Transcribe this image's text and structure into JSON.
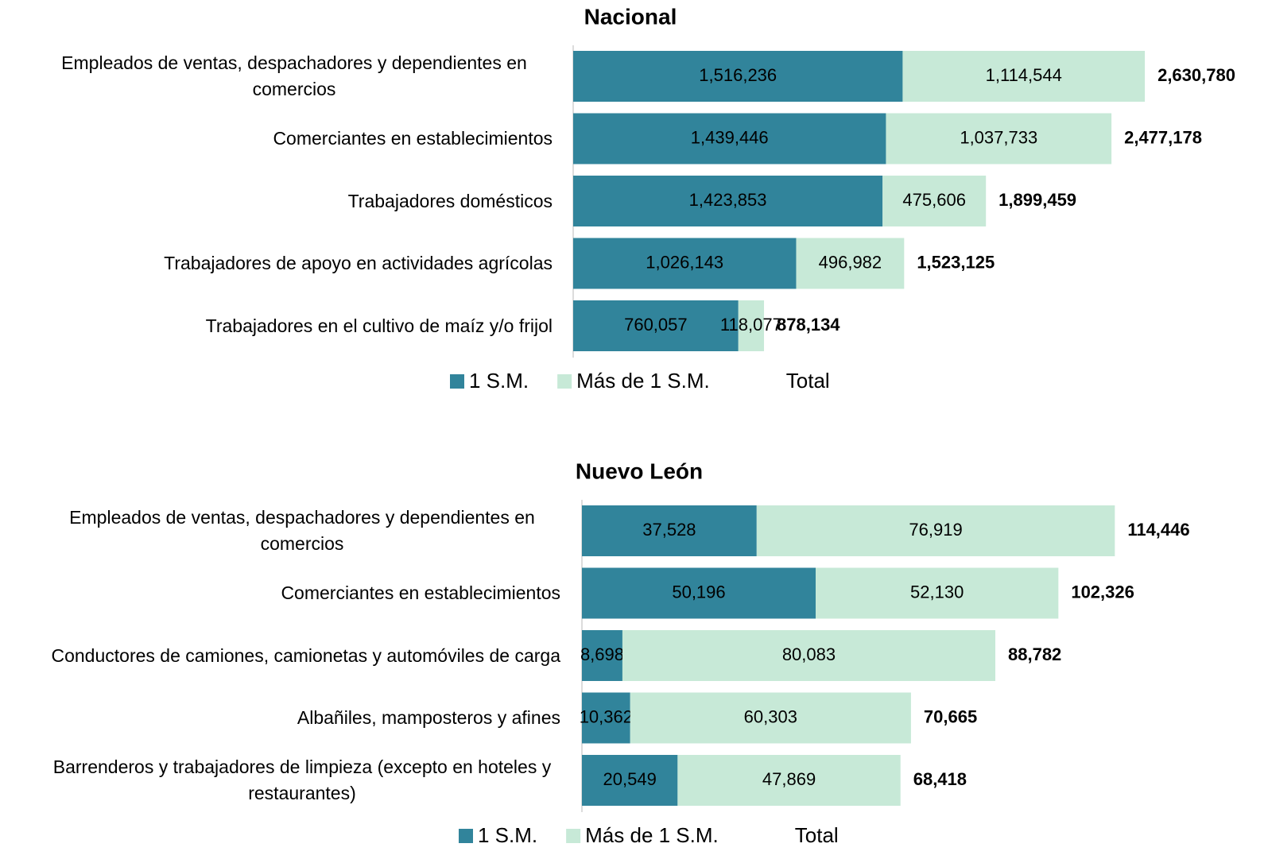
{
  "chart_data": [
    {
      "type": "bar",
      "orientation": "horizontal",
      "stacked": true,
      "title": "Nacional",
      "categories": [
        "Empleados de ventas, despachadores y dependientes en comercios",
        "Comerciantes en establecimientos",
        "Trabajadores domésticos",
        "Trabajadores de apoyo en actividades agrícolas",
        "Trabajadores en el cultivo de maíz y/o frijol"
      ],
      "series": [
        {
          "name": "1 S.M.",
          "color": "#31849b",
          "values": [
            1516236,
            1439446,
            1423853,
            1026143,
            760057
          ],
          "value_labels": [
            "1,516,236",
            "1,439,446",
            "1,423,853",
            "1,026,143",
            "760,057"
          ]
        },
        {
          "name": "Más de 1 S.M.",
          "color": "#c7e9d7",
          "values": [
            1114544,
            1037733,
            475606,
            496982,
            118077
          ],
          "value_labels": [
            "1,114,544",
            "1,037,733",
            "475,606",
            "496,982",
            "118,077"
          ]
        },
        {
          "name": "Total",
          "values": [
            2630780,
            2477178,
            1899459,
            1523125,
            878134
          ],
          "value_labels": [
            "2,630,780",
            "2,477,178",
            "1,899,459",
            "1,523,125",
            "878,134"
          ]
        }
      ],
      "xlim": [
        0,
        3000000
      ],
      "legend": "bottom"
    },
    {
      "type": "bar",
      "orientation": "horizontal",
      "stacked": true,
      "title": "Nuevo León",
      "categories": [
        "Empleados de ventas, despachadores y dependientes en comercios",
        "Comerciantes en establecimientos",
        "Conductores de camiones, camionetas y automóviles de carga",
        "Albañiles, mamposteros y afines",
        "Barrenderos y trabajadores de limpieza (excepto en hoteles y restaurantes)"
      ],
      "series": [
        {
          "name": "1 S.M.",
          "color": "#31849b",
          "values": [
            37528,
            50196,
            8698,
            10362,
            20549
          ],
          "value_labels": [
            "37,528",
            "50,196",
            "8,698",
            "10,362",
            "20,549"
          ]
        },
        {
          "name": "Más de 1 S.M.",
          "color": "#c7e9d7",
          "values": [
            76919,
            52130,
            80083,
            60303,
            47869
          ],
          "value_labels": [
            "76,919",
            "52,130",
            "80,083",
            "60,303",
            "47,869"
          ]
        },
        {
          "name": "Total",
          "values": [
            114446,
            102326,
            88782,
            70665,
            68418
          ],
          "value_labels": [
            "114,446",
            "102,326",
            "88,782",
            "70,665",
            "68,418"
          ]
        }
      ],
      "xlim": [
        0,
        140000
      ],
      "legend": "bottom"
    }
  ]
}
